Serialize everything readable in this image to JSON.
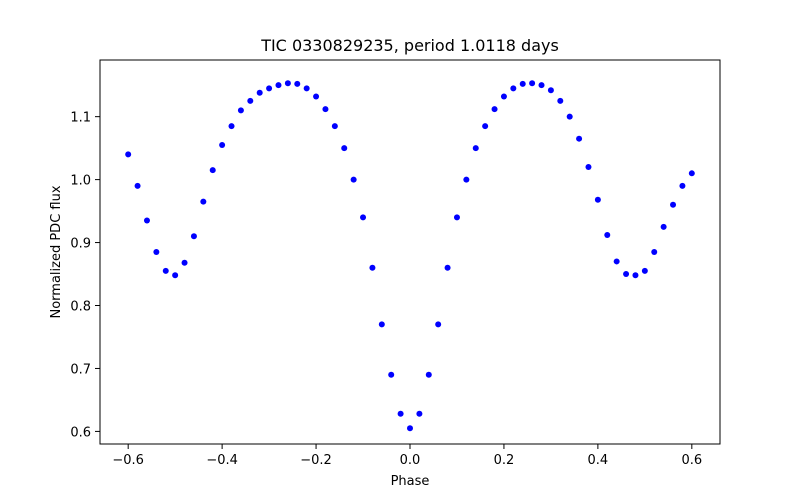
{
  "chart_data": {
    "type": "scatter",
    "title": "TIC 0330829235, period 1.0118 days",
    "xlabel": "Phase",
    "ylabel": "Normalized PDC flux",
    "xlim": [
      -0.66,
      0.66
    ],
    "ylim": [
      0.58,
      1.19
    ],
    "xticks": [
      -0.6,
      -0.4,
      -0.2,
      0.0,
      0.2,
      0.4,
      0.6
    ],
    "xtick_labels": [
      "−0.6",
      "−0.4",
      "−0.2",
      "0.0",
      "0.2",
      "0.4",
      "0.6"
    ],
    "yticks": [
      0.6,
      0.7,
      0.8,
      0.9,
      1.0,
      1.1
    ],
    "ytick_labels": [
      "0.6",
      "0.7",
      "0.8",
      "0.9",
      "1.0",
      "1.1"
    ],
    "grid": false,
    "series": [
      {
        "name": "light curve",
        "color": "#0000ff",
        "x": [
          -0.6,
          -0.58,
          -0.56,
          -0.54,
          -0.52,
          -0.5,
          -0.48,
          -0.46,
          -0.44,
          -0.42,
          -0.4,
          -0.38,
          -0.36,
          -0.34,
          -0.32,
          -0.3,
          -0.28,
          -0.26,
          -0.24,
          -0.22,
          -0.2,
          -0.18,
          -0.16,
          -0.14,
          -0.12,
          -0.1,
          -0.08,
          -0.06,
          -0.04,
          -0.02,
          0.0,
          0.02,
          0.04,
          0.06,
          0.08,
          0.1,
          0.12,
          0.14,
          0.16,
          0.18,
          0.2,
          0.22,
          0.24,
          0.26,
          0.28,
          0.3,
          0.32,
          0.34,
          0.36,
          0.38,
          0.4,
          0.42,
          0.44,
          0.46,
          0.48,
          0.5,
          0.52,
          0.54,
          0.56,
          0.58,
          0.6
        ],
        "y": [
          1.04,
          0.99,
          0.935,
          0.885,
          0.855,
          0.848,
          0.868,
          0.91,
          0.965,
          1.015,
          1.055,
          1.085,
          1.11,
          1.125,
          1.138,
          1.145,
          1.15,
          1.153,
          1.152,
          1.145,
          1.132,
          1.112,
          1.085,
          1.05,
          1.0,
          0.94,
          0.86,
          0.77,
          0.69,
          0.628,
          0.605,
          0.628,
          0.69,
          0.77,
          0.86,
          0.94,
          1.0,
          1.05,
          1.085,
          1.112,
          1.132,
          1.145,
          1.152,
          1.153,
          1.15,
          1.142,
          1.125,
          1.1,
          1.065,
          1.02,
          0.968,
          0.912,
          0.87,
          0.85,
          0.848,
          0.855,
          0.885,
          0.925,
          0.96,
          0.99,
          1.01
        ]
      }
    ]
  }
}
